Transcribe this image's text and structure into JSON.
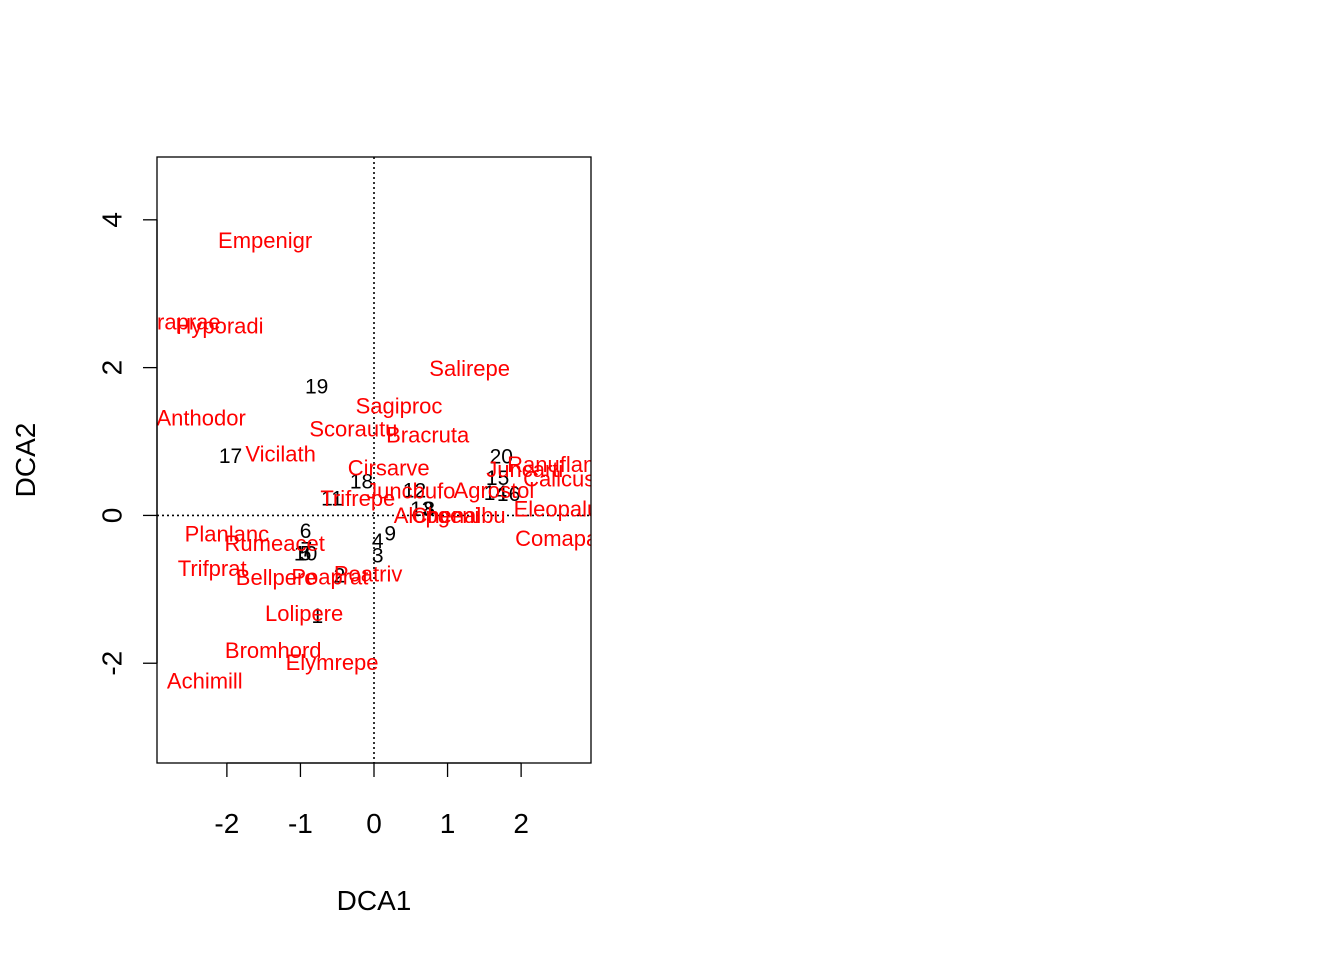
{
  "chart_data": {
    "type": "scatter",
    "xlabel": "DCA1",
    "ylabel": "DCA2",
    "xlim": [
      -2.95,
      2.95
    ],
    "ylim": [
      -3.35,
      4.85
    ],
    "x_ticks": [
      -2,
      -1,
      0,
      1,
      2
    ],
    "x_tick_labels": [
      "-2",
      "-1",
      "0",
      "1",
      "2"
    ],
    "y_ticks": [
      -2,
      0,
      2,
      4
    ],
    "y_tick_labels": [
      "-2",
      "0",
      "2",
      "4"
    ],
    "reference_lines": {
      "x": 0,
      "y": 0,
      "style": "dotted"
    },
    "grid": false,
    "colors": {
      "sites": "#000000",
      "species": "#ff0000",
      "axes": "#000000"
    },
    "series": [
      {
        "name": "sites",
        "color": "#000000",
        "points": [
          {
            "label": "1",
            "x": -0.77,
            "y": -1.37
          },
          {
            "label": "2",
            "x": -0.47,
            "y": -0.82
          },
          {
            "label": "3",
            "x": 0.05,
            "y": -0.55
          },
          {
            "label": "4",
            "x": 0.05,
            "y": -0.35
          },
          {
            "label": "5",
            "x": -0.93,
            "y": -0.52
          },
          {
            "label": "6",
            "x": -0.93,
            "y": -0.22
          },
          {
            "label": "7",
            "x": -0.92,
            "y": -0.47
          },
          {
            "label": "8",
            "x": 0.75,
            "y": 0.08
          },
          {
            "label": "9",
            "x": 0.22,
            "y": -0.25
          },
          {
            "label": "10",
            "x": -0.93,
            "y": -0.52
          },
          {
            "label": "11",
            "x": -0.57,
            "y": 0.22
          },
          {
            "label": "12",
            "x": 0.55,
            "y": 0.33
          },
          {
            "label": "13",
            "x": 0.65,
            "y": 0.08
          },
          {
            "label": "14",
            "x": 1.65,
            "y": 0.3
          },
          {
            "label": "15",
            "x": 1.68,
            "y": 0.5
          },
          {
            "label": "16",
            "x": 1.83,
            "y": 0.28
          },
          {
            "label": "17",
            "x": -1.95,
            "y": 0.8
          },
          {
            "label": "18",
            "x": -0.17,
            "y": 0.45
          },
          {
            "label": "19",
            "x": -0.78,
            "y": 1.74
          },
          {
            "label": "20",
            "x": 1.73,
            "y": 0.79
          }
        ]
      },
      {
        "name": "species",
        "color": "#ff0000",
        "points": [
          {
            "label": "Achimill",
            "x": -2.3,
            "y": -2.24
          },
          {
            "label": "Agrostol",
            "x": 1.63,
            "y": 0.34
          },
          {
            "label": "Airaprae",
            "x": -2.65,
            "y": 2.62
          },
          {
            "label": "Alopgeni",
            "x": 0.85,
            "y": 0.0
          },
          {
            "label": "Anthodor",
            "x": -2.35,
            "y": 1.32
          },
          {
            "label": "Bellpere",
            "x": -1.33,
            "y": -0.84
          },
          {
            "label": "Bromhord",
            "x": -1.37,
            "y": -1.83
          },
          {
            "label": "Chenalbu",
            "x": 1.15,
            "y": 0.0
          },
          {
            "label": "Cirsarve",
            "x": 0.2,
            "y": 0.64
          },
          {
            "label": "Comapalu",
            "x": 2.6,
            "y": -0.31
          },
          {
            "label": "Eleopalu",
            "x": 2.48,
            "y": 0.09
          },
          {
            "label": "Elymrepe",
            "x": -0.57,
            "y": -1.99
          },
          {
            "label": "Empenigr",
            "x": -1.48,
            "y": 3.72
          },
          {
            "label": "Hyporadi",
            "x": -2.1,
            "y": 2.56
          },
          {
            "label": "Juncarti",
            "x": 2.05,
            "y": 0.62
          },
          {
            "label": "Juncbufo",
            "x": 0.5,
            "y": 0.33
          },
          {
            "label": "Lolipere",
            "x": -0.95,
            "y": -1.33
          },
          {
            "label": "Planlanc",
            "x": -2.0,
            "y": -0.25
          },
          {
            "label": "Poaprat",
            "x": -0.6,
            "y": -0.83
          },
          {
            "label": "Poatriv",
            "x": -0.08,
            "y": -0.79
          },
          {
            "label": "Ranuflam",
            "x": 2.45,
            "y": 0.69
          },
          {
            "label": "Rumeacet",
            "x": -1.35,
            "y": -0.38
          },
          {
            "label": "Sagiproc",
            "x": 0.34,
            "y": 1.48
          },
          {
            "label": "Salirepe",
            "x": 1.3,
            "y": 1.99
          },
          {
            "label": "Scorautu",
            "x": -0.28,
            "y": 1.17
          },
          {
            "label": "Trifprat",
            "x": -2.2,
            "y": -0.72
          },
          {
            "label": "Trifrepe",
            "x": -0.22,
            "y": 0.23
          },
          {
            "label": "Vicilath",
            "x": -1.27,
            "y": 0.83
          },
          {
            "label": "Bracruta",
            "x": 0.73,
            "y": 1.09
          },
          {
            "label": "Callcusp",
            "x": 2.6,
            "y": 0.49
          }
        ]
      }
    ]
  }
}
